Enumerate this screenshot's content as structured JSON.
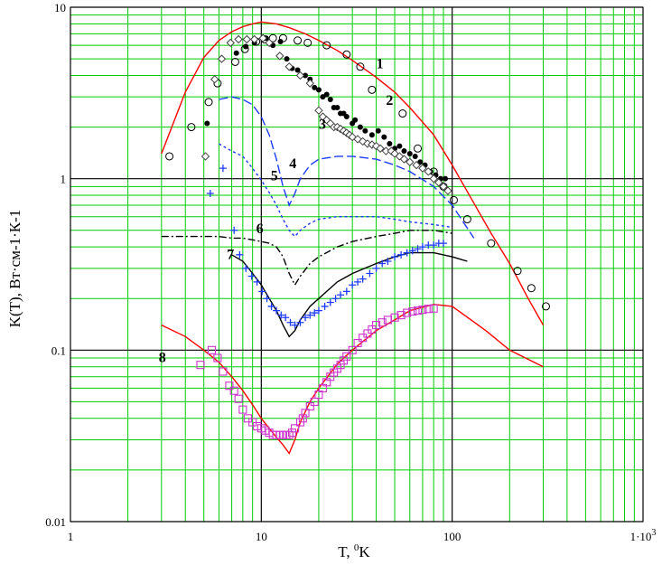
{
  "chart_data": {
    "type": "scatter",
    "x_scale": "log",
    "y_scale": "log",
    "xlim": [
      1,
      1000
    ],
    "ylim": [
      0.01,
      10
    ],
    "grid": true,
    "xlabel_main": "T, ",
    "xlabel_sup": "0",
    "xlabel_tail": "K",
    "ylabel": "K(T), Вт·см-1·К-1",
    "x_ticks": [
      {
        "value": 1,
        "label": "1"
      },
      {
        "value": 10,
        "label": "10"
      },
      {
        "value": 100,
        "label": "100"
      },
      {
        "value": 1000,
        "label": "1·10"
      }
    ],
    "x_tick_last_sup": "3",
    "y_ticks": [
      {
        "value": 0.01,
        "label": "0.01"
      },
      {
        "value": 0.1,
        "label": "0.1"
      },
      {
        "value": 1,
        "label": "1"
      },
      {
        "value": 10,
        "label": "10"
      }
    ],
    "colors": {
      "grid": "#00cc00",
      "major_grid": "#000000",
      "red": "#ff0000",
      "blue": "#1e3cff",
      "magenta": "#cc33cc",
      "black": "#000000",
      "olive": "#404040"
    },
    "curve_labels": [
      {
        "text": "1",
        "x": 40,
        "y": 4.4
      },
      {
        "text": "2",
        "x": 45,
        "y": 2.7
      },
      {
        "text": "3",
        "x": 20,
        "y": 1.95
      },
      {
        "text": "4",
        "x": 14,
        "y": 1.15
      },
      {
        "text": "5",
        "x": 11.2,
        "y": 0.98
      },
      {
        "text": "6",
        "x": 9.4,
        "y": 0.48
      },
      {
        "text": "7",
        "x": 6.6,
        "y": 0.34
      },
      {
        "text": "8",
        "x": 2.9,
        "y": 0.085
      }
    ],
    "series": [
      {
        "id": "curve-1",
        "style": "line",
        "color": "red",
        "x": [
          3,
          4,
          5,
          6,
          7,
          8,
          9,
          10,
          11,
          12,
          14,
          17,
          20,
          25,
          30,
          40,
          50,
          60,
          80,
          100,
          130,
          160,
          200,
          250,
          300
        ],
        "y": [
          1.4,
          3.2,
          5.1,
          6.4,
          7.2,
          7.7,
          8.0,
          8.2,
          8.1,
          8.0,
          7.6,
          7.0,
          6.4,
          5.6,
          4.9,
          3.9,
          3.2,
          2.6,
          1.8,
          1.2,
          0.72,
          0.48,
          0.32,
          0.2,
          0.14
        ]
      },
      {
        "id": "points-1",
        "style": "circle",
        "color": "black",
        "x": [
          3.3,
          4.3,
          5.3,
          5.9,
          7.3,
          8.2,
          9.4,
          10.4,
          11.5,
          13,
          15.5,
          17.5,
          22,
          28,
          33,
          38,
          55,
          66,
          80,
          90,
          102,
          120,
          160,
          220,
          260,
          310
        ],
        "y": [
          1.35,
          2.0,
          2.8,
          3.6,
          4.8,
          5.7,
          6.3,
          6.5,
          6.6,
          6.6,
          6.4,
          6.2,
          6.0,
          5.3,
          4.5,
          3.3,
          2.4,
          1.5,
          1.1,
          0.9,
          0.75,
          0.58,
          0.42,
          0.29,
          0.23,
          0.18
        ]
      },
      {
        "id": "points-2",
        "style": "dot",
        "color": "black",
        "x": [
          5.2,
          6.2,
          7.4,
          8.3,
          9.2,
          10.6,
          11.5,
          12.6,
          13.6,
          14.5,
          15.5,
          16,
          17,
          18,
          19,
          20,
          21,
          22,
          23,
          24,
          25,
          26,
          27,
          28,
          30,
          31,
          33,
          35,
          38,
          41,
          44,
          47,
          50,
          53,
          56,
          60,
          64,
          68,
          72,
          77,
          82,
          87,
          92
        ],
        "y": [
          2.1,
          5.0,
          5.4,
          5.9,
          6.2,
          6.6,
          6.0,
          6.3,
          5.0,
          4.4,
          4.3,
          4.0,
          4.0,
          3.8,
          3.4,
          3.3,
          3.0,
          3.1,
          2.9,
          2.6,
          2.6,
          2.4,
          2.4,
          2.3,
          2.1,
          2.2,
          2.0,
          1.9,
          1.8,
          1.9,
          1.75,
          1.6,
          1.5,
          1.55,
          1.45,
          1.4,
          1.35,
          1.25,
          1.2,
          1.1,
          1.05,
          1.0,
          1.0
        ]
      },
      {
        "id": "points-3",
        "style": "diamond",
        "color": "olive",
        "x": [
          5.1,
          5.7,
          6.2,
          6.9,
          7.6,
          8.4,
          9.2,
          10.2,
          11,
          12.5,
          14,
          16,
          18,
          20,
          21,
          22,
          23,
          24,
          25,
          26,
          27,
          28,
          29,
          30,
          32,
          34,
          36,
          38,
          40,
          42,
          45,
          48,
          50,
          53,
          56,
          60,
          65,
          70,
          75,
          80,
          85,
          90,
          95
        ],
        "y": [
          1.35,
          3.8,
          5.0,
          6.2,
          6.5,
          6.5,
          6.5,
          6.6,
          6.2,
          5.2,
          4.5,
          4.0,
          3.6,
          2.5,
          2.3,
          2.2,
          2.1,
          2.0,
          2.0,
          1.95,
          1.9,
          1.85,
          1.8,
          1.75,
          1.7,
          1.65,
          1.6,
          1.58,
          1.55,
          1.5,
          1.45,
          1.45,
          1.4,
          1.35,
          1.3,
          1.25,
          1.2,
          1.15,
          1.1,
          1.0,
          0.95,
          0.9,
          0.85
        ]
      },
      {
        "id": "curve-4",
        "style": "dash-long",
        "color": "blue",
        "x": [
          6,
          7,
          8,
          9,
          10,
          11,
          12,
          13,
          14,
          15,
          16,
          18,
          20,
          25,
          30,
          40,
          50,
          60,
          80,
          100,
          130
        ],
        "y": [
          2.9,
          3.0,
          2.9,
          2.7,
          2.3,
          1.8,
          1.3,
          0.9,
          0.7,
          0.82,
          1.0,
          1.2,
          1.3,
          1.35,
          1.35,
          1.3,
          1.2,
          1.1,
          0.9,
          0.7,
          0.45
        ]
      },
      {
        "id": "curve-5",
        "style": "dash-short",
        "color": "blue",
        "x": [
          6,
          7,
          8,
          9,
          10,
          11,
          12,
          13,
          14,
          15,
          16,
          18,
          20,
          25,
          30,
          40,
          50,
          60,
          80,
          100
        ],
        "y": [
          1.6,
          1.45,
          1.35,
          1.15,
          0.98,
          0.83,
          0.7,
          0.58,
          0.5,
          0.46,
          0.5,
          0.55,
          0.58,
          0.6,
          0.6,
          0.6,
          0.58,
          0.56,
          0.54,
          0.52
        ]
      },
      {
        "id": "curve-6",
        "style": "dashdot",
        "color": "black",
        "x": [
          3,
          4,
          5,
          6,
          7,
          8,
          9,
          10,
          11,
          12,
          13,
          14,
          15,
          16,
          18,
          20,
          25,
          30,
          40,
          50,
          60,
          80,
          100
        ],
        "y": [
          0.46,
          0.46,
          0.46,
          0.46,
          0.45,
          0.45,
          0.44,
          0.43,
          0.42,
          0.4,
          0.35,
          0.28,
          0.24,
          0.27,
          0.32,
          0.35,
          0.4,
          0.43,
          0.46,
          0.48,
          0.5,
          0.5,
          0.48
        ]
      },
      {
        "id": "curve-7",
        "style": "line",
        "color": "black",
        "x": [
          7,
          8,
          9,
          10,
          11,
          12,
          13,
          14,
          15,
          16,
          18,
          20,
          25,
          30,
          40,
          50,
          60,
          80,
          100,
          120
        ],
        "y": [
          0.36,
          0.33,
          0.28,
          0.24,
          0.2,
          0.17,
          0.14,
          0.12,
          0.13,
          0.15,
          0.18,
          0.2,
          0.25,
          0.28,
          0.32,
          0.35,
          0.37,
          0.37,
          0.35,
          0.33
        ]
      },
      {
        "id": "points-7",
        "style": "plus",
        "color": "blue",
        "x": [
          5.4,
          6.3,
          7.2,
          7.7,
          8.3,
          8.9,
          9.5,
          10.1,
          10.7,
          11.3,
          12,
          12.7,
          13.4,
          14.2,
          15,
          16,
          17,
          18,
          19,
          20,
          21.5,
          23,
          24.5,
          26,
          28,
          30,
          32,
          34,
          37,
          40,
          43,
          46,
          50,
          54,
          58,
          62,
          66,
          70,
          75,
          80,
          85,
          90
        ],
        "y": [
          0.82,
          1.15,
          0.5,
          0.36,
          0.3,
          0.27,
          0.25,
          0.22,
          0.2,
          0.18,
          0.17,
          0.16,
          0.155,
          0.145,
          0.14,
          0.145,
          0.155,
          0.16,
          0.165,
          0.17,
          0.18,
          0.19,
          0.2,
          0.21,
          0.22,
          0.24,
          0.25,
          0.26,
          0.28,
          0.3,
          0.32,
          0.33,
          0.35,
          0.36,
          0.37,
          0.38,
          0.39,
          0.4,
          0.41,
          0.41,
          0.42,
          0.42
        ]
      },
      {
        "id": "curve-8",
        "style": "line",
        "color": "red",
        "x": [
          3,
          4,
          5,
          6,
          7,
          8,
          9,
          10,
          11,
          12,
          13,
          14,
          15,
          16,
          18,
          20,
          25,
          30,
          40,
          50,
          60,
          80,
          100,
          150,
          200,
          300
        ],
        "y": [
          0.14,
          0.12,
          0.1,
          0.085,
          0.07,
          0.058,
          0.048,
          0.04,
          0.035,
          0.031,
          0.028,
          0.025,
          0.03,
          0.038,
          0.05,
          0.06,
          0.083,
          0.1,
          0.13,
          0.15,
          0.17,
          0.185,
          0.18,
          0.13,
          0.1,
          0.08
        ]
      },
      {
        "id": "points-8",
        "style": "square",
        "color": "magenta",
        "x": [
          4.8,
          5.5,
          5.9,
          6.3,
          6.8,
          7.2,
          7.6,
          8.0,
          8.5,
          9.0,
          9.5,
          10.0,
          10.5,
          11,
          11.5,
          12,
          12.5,
          13,
          13.5,
          14,
          14.5,
          15,
          16,
          16.5,
          17,
          18,
          19,
          20,
          21,
          22,
          23,
          24,
          25,
          26,
          27,
          28,
          30,
          32,
          34,
          36,
          38,
          40,
          43,
          46,
          50,
          54,
          58,
          62,
          66,
          70,
          75,
          80
        ],
        "y": [
          0.082,
          0.1,
          0.09,
          0.075,
          0.062,
          0.058,
          0.052,
          0.045,
          0.04,
          0.038,
          0.036,
          0.035,
          0.034,
          0.033,
          0.032,
          0.032,
          0.032,
          0.032,
          0.032,
          0.032,
          0.033,
          0.035,
          0.038,
          0.04,
          0.043,
          0.047,
          0.05,
          0.055,
          0.06,
          0.065,
          0.07,
          0.074,
          0.078,
          0.082,
          0.087,
          0.092,
          0.1,
          0.11,
          0.118,
          0.125,
          0.132,
          0.14,
          0.145,
          0.15,
          0.155,
          0.16,
          0.165,
          0.168,
          0.17,
          0.172,
          0.174,
          0.175
        ]
      }
    ]
  }
}
